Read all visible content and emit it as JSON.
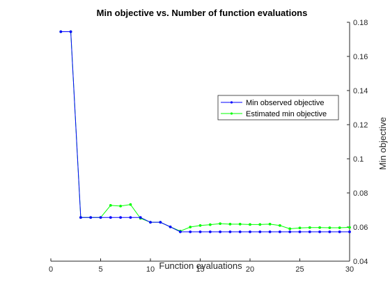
{
  "chart_data": {
    "type": "line",
    "title": "Min objective vs. Number of function evaluations",
    "xlabel": "Function evaluations",
    "ylabel": "Min objective",
    "xlim": [
      0,
      30
    ],
    "ylim": [
      0.04,
      0.18
    ],
    "xticks": [
      0,
      5,
      10,
      15,
      20,
      25,
      30
    ],
    "yticks": [
      0.04,
      0.06,
      0.08,
      0.1,
      0.12,
      0.14,
      0.16,
      0.18
    ],
    "ytick_labels": [
      "0.04",
      "0.06",
      "0.08",
      "0.1",
      "0.12",
      "0.14",
      "0.16",
      "0.18"
    ],
    "y_axis_side": "right",
    "grid": false,
    "legend_position": "right, upper-middle",
    "x": [
      1,
      2,
      3,
      4,
      5,
      6,
      7,
      8,
      9,
      10,
      11,
      12,
      13,
      14,
      15,
      16,
      17,
      18,
      19,
      20,
      21,
      22,
      23,
      24,
      25,
      26,
      27,
      28,
      29,
      30
    ],
    "series": [
      {
        "name": "Min observed objective",
        "color": "#0000ff",
        "values": [
          0.1745,
          0.1745,
          0.0656,
          0.0656,
          0.0656,
          0.0656,
          0.0656,
          0.0656,
          0.0656,
          0.0628,
          0.0628,
          0.0601,
          0.0572,
          0.0572,
          0.0572,
          0.0572,
          0.0572,
          0.0572,
          0.0572,
          0.0572,
          0.0572,
          0.0572,
          0.0572,
          0.0572,
          0.0572,
          0.0572,
          0.0572,
          0.0572,
          0.0572,
          0.0572
        ]
      },
      {
        "name": "Estimated min objective",
        "color": "#00ff00",
        "values": [
          0.1745,
          0.1745,
          0.0656,
          0.0656,
          0.0656,
          0.0727,
          0.0723,
          0.0732,
          0.0651,
          0.0628,
          0.0628,
          0.0601,
          0.0576,
          0.06,
          0.0609,
          0.0614,
          0.062,
          0.0617,
          0.0617,
          0.0615,
          0.0615,
          0.0617,
          0.0609,
          0.059,
          0.0595,
          0.0597,
          0.0597,
          0.0596,
          0.0596,
          0.0598
        ]
      }
    ]
  }
}
